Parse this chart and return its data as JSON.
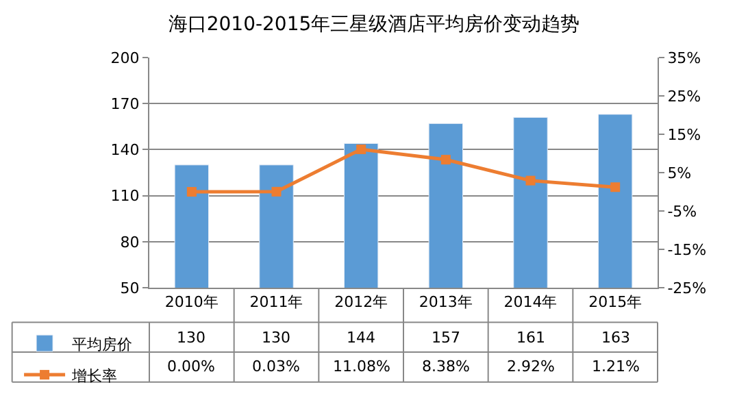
{
  "chart_data": {
    "type": "bar",
    "title": "海口2010-2015年三星级酒店平均房价变动趋势",
    "categories": [
      "2010年",
      "2011年",
      "2012年",
      "2013年",
      "2014年",
      "2015年"
    ],
    "series": [
      {
        "name": "平均房价",
        "color": "#5b9bd5",
        "values": [
          130,
          130,
          144,
          157,
          161,
          163
        ],
        "value_labels": [
          "130",
          "130",
          "144",
          "157",
          "161",
          "163"
        ]
      },
      {
        "name": "增长率",
        "type": "line",
        "axis": "y2",
        "color": "#ed7d31",
        "marker": "square",
        "values": [
          0.0,
          0.03,
          11.08,
          8.38,
          2.92,
          1.21
        ],
        "value_labels": [
          "0.00%",
          "0.03%",
          "11.08%",
          "8.38%",
          "2.92%",
          "1.21%"
        ]
      }
    ],
    "ylim": [
      50,
      200
    ],
    "yticks": [
      50,
      80,
      110,
      140,
      170,
      200
    ],
    "y2lim": [
      -25,
      35
    ],
    "y2ticks": [
      {
        "value": -25,
        "label": "-25%"
      },
      {
        "value": -15,
        "label": "-15%"
      },
      {
        "value": -5,
        "label": "-5%"
      },
      {
        "value": 5,
        "label": "5%"
      },
      {
        "value": 15,
        "label": "15%"
      },
      {
        "value": 25,
        "label": "25%"
      },
      {
        "value": 35,
        "label": "35%"
      }
    ],
    "grid": "y",
    "legend": "bottom"
  }
}
